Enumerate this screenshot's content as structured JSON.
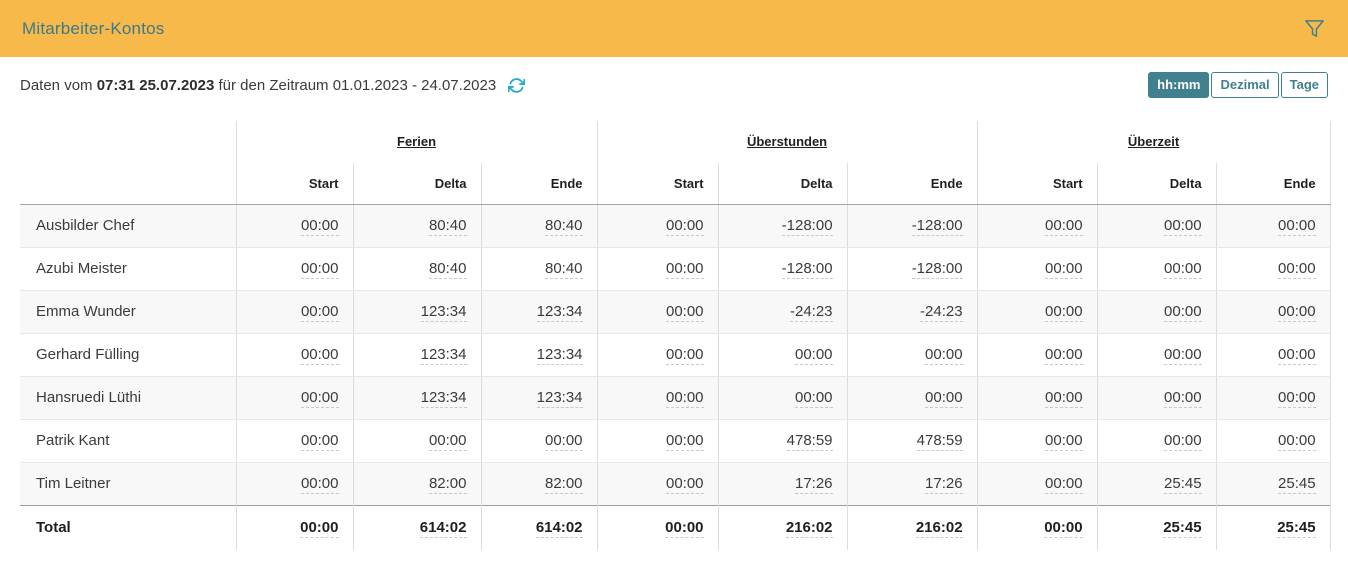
{
  "header": {
    "title": "Mitarbeiter-Kontos",
    "filter_icon": "filter-funnel-icon"
  },
  "info_bar": {
    "prefix": "Daten vom",
    "timestamp": "07:31 25.07.2023",
    "suffix": "für den Zeitraum 01.01.2023 - 24.07.2023",
    "refresh_icon": "refresh-icon"
  },
  "view_toggle": {
    "options": [
      {
        "label": "hh:mm",
        "active": true
      },
      {
        "label": "Dezimal",
        "active": false
      },
      {
        "label": "Tage",
        "active": false
      }
    ]
  },
  "table": {
    "groups": [
      "Ferien",
      "Überstunden",
      "Überzeit"
    ],
    "sub_columns": [
      "Start",
      "Delta",
      "Ende"
    ],
    "rows": [
      {
        "name": "Ausbilder Chef",
        "values": [
          "00:00",
          "80:40",
          "80:40",
          "00:00",
          "-128:00",
          "-128:00",
          "00:00",
          "00:00",
          "00:00"
        ]
      },
      {
        "name": "Azubi Meister",
        "values": [
          "00:00",
          "80:40",
          "80:40",
          "00:00",
          "-128:00",
          "-128:00",
          "00:00",
          "00:00",
          "00:00"
        ]
      },
      {
        "name": "Emma Wunder",
        "values": [
          "00:00",
          "123:34",
          "123:34",
          "00:00",
          "-24:23",
          "-24:23",
          "00:00",
          "00:00",
          "00:00"
        ]
      },
      {
        "name": "Gerhard Fülling",
        "values": [
          "00:00",
          "123:34",
          "123:34",
          "00:00",
          "00:00",
          "00:00",
          "00:00",
          "00:00",
          "00:00"
        ]
      },
      {
        "name": "Hansruedi Lüthi",
        "values": [
          "00:00",
          "123:34",
          "123:34",
          "00:00",
          "00:00",
          "00:00",
          "00:00",
          "00:00",
          "00:00"
        ]
      },
      {
        "name": "Patrik Kant",
        "values": [
          "00:00",
          "00:00",
          "00:00",
          "00:00",
          "478:59",
          "478:59",
          "00:00",
          "00:00",
          "00:00"
        ]
      },
      {
        "name": "Tim Leitner",
        "values": [
          "00:00",
          "82:00",
          "82:00",
          "00:00",
          "17:26",
          "17:26",
          "00:00",
          "25:45",
          "25:45"
        ]
      }
    ],
    "total": {
      "label": "Total",
      "values": [
        "00:00",
        "614:02",
        "614:02",
        "00:00",
        "216:02",
        "216:02",
        "00:00",
        "25:45",
        "25:45"
      ]
    }
  },
  "colors": {
    "header_bg": "#F7B94A",
    "accent_teal": "#41808E",
    "title_teal": "#3A7A8C",
    "refresh_cyan": "#21AEC6",
    "row_stripe": "#F8F8F8"
  }
}
